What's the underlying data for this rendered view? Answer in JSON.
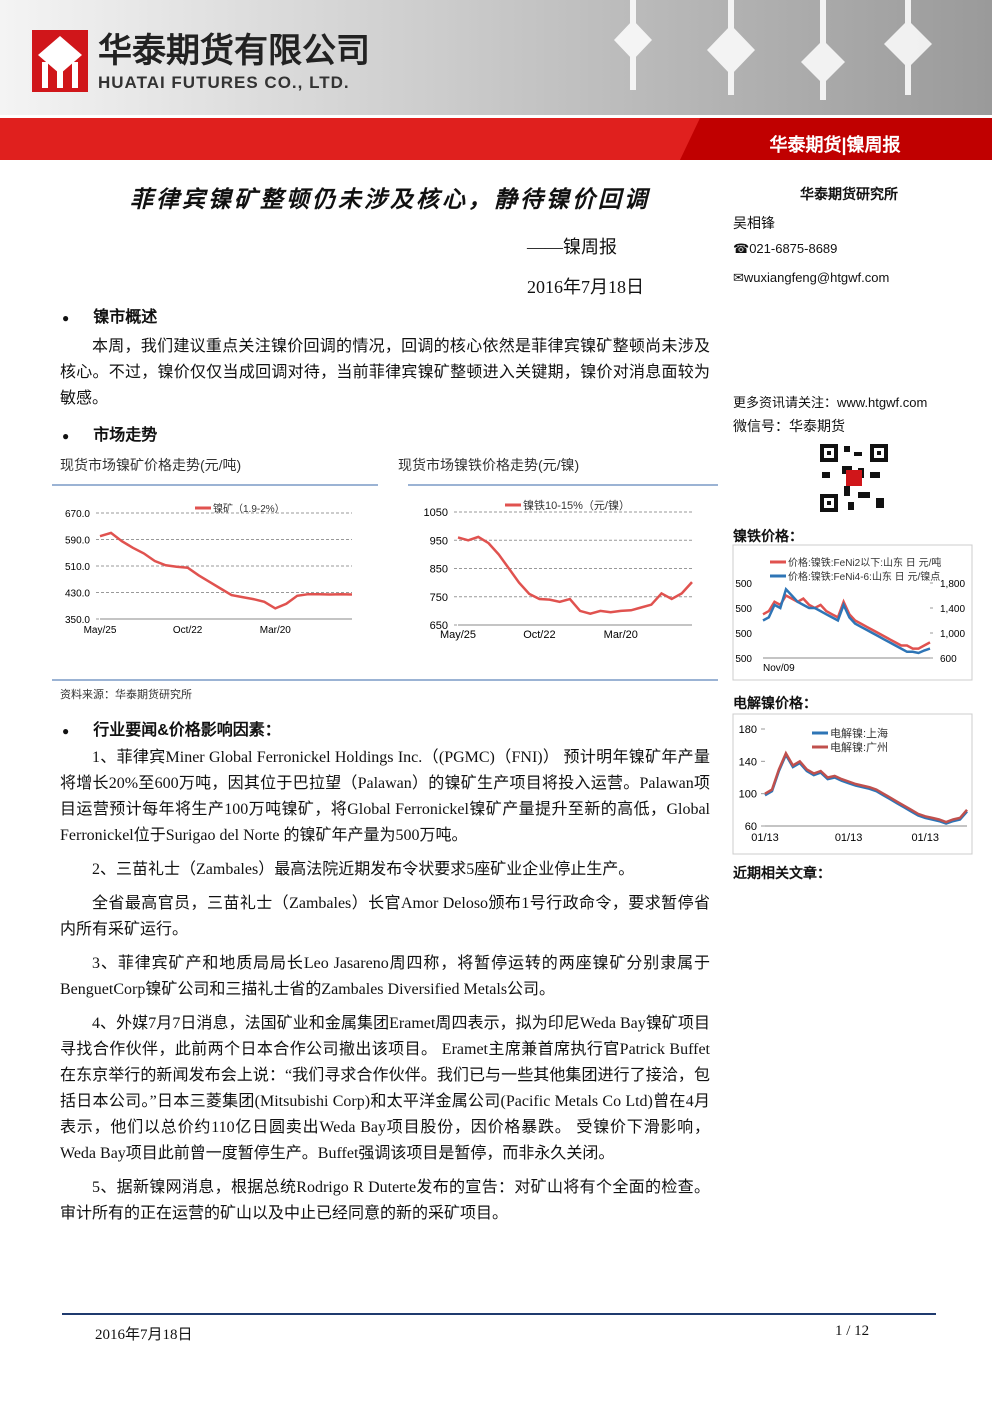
{
  "header": {
    "company_cn": "华泰期货有限公司",
    "company_en": "HUATAI FUTURES CO., LTD.",
    "banner": "华泰期货|镍周报"
  },
  "title": "菲律宾镍矿整顿仍未涉及核心，静待镍价回调",
  "subtitle": "——镍周报",
  "date": "2016年7月18日",
  "sidebar": {
    "institute": "华泰期货研究所",
    "author": "吴相锋",
    "phone": "☎021-6875-8689",
    "email": "✉wuxiangfeng@htgwf.com",
    "more": "更多资讯请关注：www.htgwf.com",
    "wechat": "微信号：华泰期货",
    "nickel_iron_heading": "镍铁价格：",
    "electrolytic_heading": "电解镍价格：",
    "related_heading": "近期相关文章："
  },
  "sections": [
    {
      "heading": "镍市概述",
      "paragraphs": [
        "本周，我们建议重点关注镍价回调的情况，回调的核心依然是菲律宾镍矿整顿尚未涉及核心。不过，镍价仅仅当成回调对待，当前菲律宾镍矿整顿进入关键期，镍价对消息面较为敏感。"
      ]
    },
    {
      "heading": "市场走势"
    },
    {
      "heading": "行业要闻&价格影响因素：",
      "paragraphs": [
        "1、菲律宾Miner Global Ferronickel Holdings Inc.（(PGMC)（FNI)） 预计明年镍矿年产量将增长20%至600万吨，因其位于巴拉望（Palawan）的镍矿生产项目将投入运营。Palawan项目运营预计每年将生产100万吨镍矿，将Global Ferronickel镍矿产量提升至新的高低，Global Ferronickel位于Surigao del Norte 的镍矿年产量为500万吨。",
        "2、三苗礼士（Zambales）最高法院近期发布令状要求5座矿业企业停止生产。",
        "全省最高官员，三苗礼士（Zambales）长官Amor Deloso颁布1号行政命令，要求暂停省内所有采矿运行。",
        "3、菲律宾矿产和地质局局长Leo Jasareno周四称，将暂停运转的两座镍矿分别隶属于BenguetCorp镍矿公司和三描礼士省的Zambales Diversified Metals公司。",
        "4、外媒7月7日消息，法国矿业和金属集团Eramet周四表示，拟为印尼Weda Bay镍矿项目寻找合作伙伴，此前两个日本合作公司撤出该项目。 Eramet主席兼首席执行官Patrick Buffet在东京举行的新闻发布会上说：“我们寻求合作伙伴。我们已与一些其他集团进行了接洽，包括日本公司。”日本三菱集团(Mitsubishi Corp)和太平洋金属公司(Pacific Metals Co Ltd)曾在4月表示，他们以总价约110亿日圆卖出Weda Bay项目股份，因价格暴跌。 受镍价下滑影响，Weda Bay项目此前曾一度暂停生产。Buffet强调该项目是暂停，而非永久关闭。",
        "5、据新镍网消息，根据总统Rodrigo R Duterte发布的宣告：对矿山将有个全面的检查。审计所有的正在运营的矿山以及中止已经同意的新的采矿项目。"
      ]
    }
  ],
  "source": "资料来源：华泰期货研究所",
  "charts": [
    {
      "type": "line",
      "title": "现货市场镍矿价格走势(元/吨)",
      "categories": [
        "May/25",
        null,
        null,
        null,
        null,
        null,
        null,
        null,
        "Oct/22",
        null,
        null,
        null,
        null,
        null,
        null,
        null,
        "Mar/20",
        null,
        null,
        null,
        null,
        null,
        null,
        null
      ],
      "series": [
        {
          "name": "镍矿（1.9-2%）",
          "color": "#e0524f",
          "values": [
            600,
            610,
            585,
            565,
            548,
            525,
            512,
            508,
            505,
            482,
            462,
            442,
            422,
            416,
            410,
            402,
            382,
            396,
            420,
            425,
            425,
            424,
            425,
            424
          ]
        }
      ],
      "ylim": [
        350,
        670
      ],
      "yticks": [
        {
          "value": 350,
          "label": "350.0"
        },
        {
          "value": 430,
          "label": "430.0"
        },
        {
          "value": 510,
          "label": "510.0"
        },
        {
          "value": 590,
          "label": "590.0"
        },
        {
          "value": 670,
          "label": "670.0"
        }
      ],
      "grid": true
    },
    {
      "type": "line",
      "title": "现货市场镍铁价格走势(元/镍)",
      "categories": [
        "May/25",
        null,
        null,
        null,
        null,
        null,
        null,
        null,
        "Oct/22",
        null,
        null,
        null,
        null,
        null,
        null,
        null,
        "Mar/20",
        null,
        null,
        null,
        null,
        null,
        null,
        null
      ],
      "series": [
        {
          "name": "镍铁10-15%（元/镍）",
          "color": "#e0524f",
          "values": [
            960,
            950,
            962,
            940,
            900,
            850,
            800,
            760,
            742,
            740,
            732,
            742,
            700,
            690,
            700,
            695,
            700,
            702,
            712,
            722,
            762,
            742,
            762,
            802
          ]
        }
      ],
      "ylim": [
        650,
        1050
      ],
      "yticks": [
        650,
        750,
        850,
        950,
        1050
      ],
      "grid": true
    },
    {
      "type": "line",
      "categories": [
        "Nov/09",
        null,
        null,
        null,
        null,
        null,
        null,
        null,
        null,
        null,
        null,
        null,
        null,
        null,
        null,
        null,
        null,
        null,
        null,
        null,
        null,
        null,
        null,
        null,
        null,
        null,
        null,
        null,
        null,
        null
      ],
      "series": [
        {
          "name": "价格:镍铁:FeNi2以下:山东 日 元/吨",
          "color": "#e0524f",
          "axis": "y2",
          "values": [
            1300,
            1350,
            1500,
            1450,
            1600,
            1550,
            1500,
            1550,
            1450,
            1400,
            1450,
            1350,
            1300,
            1250,
            1500,
            1300,
            1200,
            1150,
            1100,
            1050,
            1000,
            950,
            900,
            850,
            800,
            800,
            750,
            750,
            800,
            850
          ]
        },
        {
          "name": "价格:镍铁:FeNi4-6:山东 日 元/镍点",
          "color": "#2e75b6",
          "axis": "y2",
          "values": [
            1200,
            1250,
            1450,
            1400,
            1700,
            1600,
            1500,
            1450,
            1400,
            1400,
            1350,
            1300,
            1250,
            1200,
            1450,
            1250,
            1150,
            1100,
            1050,
            1000,
            950,
            900,
            850,
            800,
            750,
            700,
            700,
            680,
            720,
            750
          ]
        }
      ],
      "y_tick_labels": [
        "500",
        "500",
        "500",
        "500"
      ],
      "y2lim": [
        600,
        1800
      ],
      "y2ticks": [
        600,
        {
          "value": 1000,
          "label": "1,000"
        },
        {
          "value": 1400,
          "label": "1,400"
        },
        {
          "value": 1800,
          "label": "1,800"
        }
      ],
      "grid": false
    },
    {
      "type": "line",
      "categories": [
        "01/13",
        null,
        null,
        null,
        null,
        null,
        null,
        null,
        null,
        null,
        null,
        null,
        "01/13",
        null,
        null,
        null,
        null,
        null,
        null,
        null,
        null,
        null,
        null,
        "01/13",
        null,
        null,
        null,
        null,
        null,
        null
      ],
      "series": [
        {
          "name": "电解镍:上海",
          "color": "#2e75b6",
          "values": [
            98,
            103,
            128,
            148,
            133,
            138,
            128,
            123,
            126,
            118,
            120,
            116,
            113,
            110,
            108,
            106,
            103,
            98,
            93,
            88,
            83,
            78,
            73,
            70,
            68,
            66,
            63,
            66,
            68,
            78
          ]
        },
        {
          "name": "电解镍:广州",
          "color": "#c0504d",
          "values": [
            100,
            105,
            130,
            150,
            135,
            140,
            130,
            125,
            128,
            120,
            122,
            118,
            115,
            112,
            110,
            108,
            105,
            100,
            95,
            90,
            85,
            80,
            75,
            72,
            70,
            68,
            65,
            68,
            70,
            80
          ]
        }
      ],
      "ylim": [
        60,
        180
      ],
      "yticks": [
        60,
        100,
        140,
        180
      ],
      "grid": false
    }
  ],
  "footer": {
    "date": "2016年7月18日",
    "page": "1 / 12"
  }
}
